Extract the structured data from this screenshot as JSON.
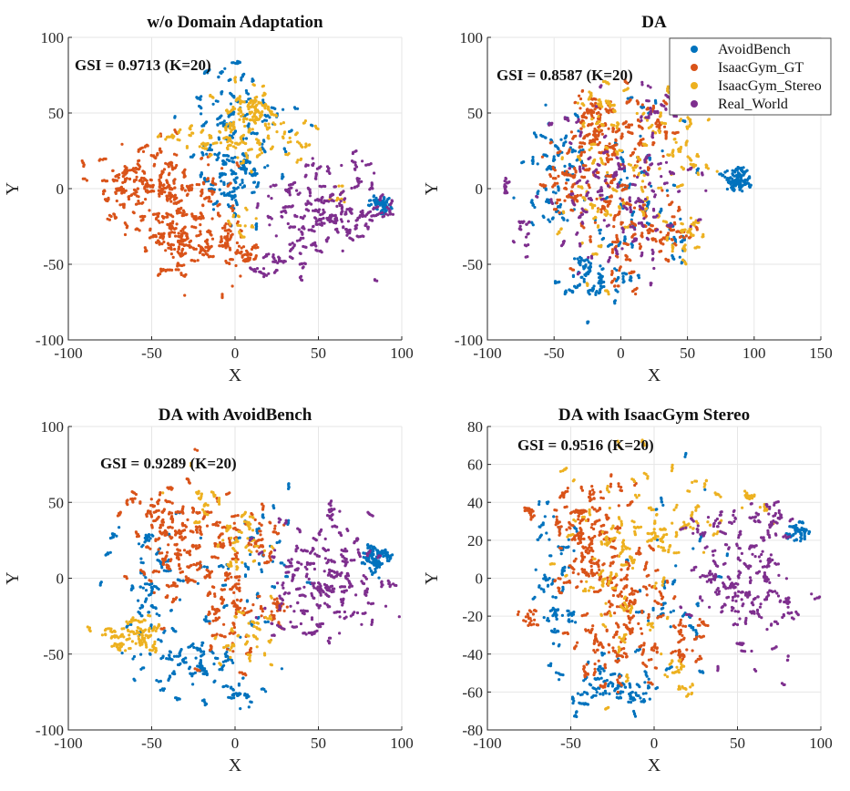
{
  "chart_data": [
    {
      "type": "scatter",
      "title": "w/o Domain Adaptation",
      "xlabel": "X",
      "ylabel": "Y",
      "xlim": [
        -100,
        100
      ],
      "ylim": [
        -100,
        100
      ],
      "xticks": [
        -100,
        -50,
        0,
        50,
        100
      ],
      "yticks": [
        -100,
        -50,
        0,
        50,
        100
      ],
      "xtick_labels": [
        "-100",
        "-50",
        "0",
        "50",
        "100"
      ],
      "ytick_labels": [
        "-100",
        "-50",
        "0",
        "50",
        "100"
      ],
      "grid": true,
      "annotation": "GSI = 0.9713 (K=20)",
      "gsi": 0.9713,
      "k": 20,
      "legend": null,
      "series": [
        {
          "name": "AvoidBench",
          "clusters": [
            [
              -5,
              55,
              12,
              12,
              120
            ],
            [
              -5,
              20,
              12,
              12,
              140
            ],
            [
              -5,
              -5,
              8,
              10,
              60
            ],
            [
              10,
              5,
              6,
              6,
              50
            ],
            [
              88,
              -10,
              3,
              3,
              70
            ],
            [
              20,
              40,
              10,
              8,
              30
            ]
          ]
        },
        {
          "name": "IsaacGym_GT",
          "clusters": [
            [
              -55,
              5,
              14,
              12,
              300
            ],
            [
              -35,
              -30,
              15,
              14,
              320
            ],
            [
              -20,
              -5,
              10,
              12,
              100
            ],
            [
              5,
              -45,
              5,
              5,
              60
            ],
            [
              -5,
              -30,
              5,
              6,
              40
            ]
          ]
        },
        {
          "name": "IsaacGym_Stereo",
          "clusters": [
            [
              8,
              55,
              8,
              8,
              140
            ],
            [
              15,
              35,
              15,
              10,
              150
            ],
            [
              -20,
              35,
              10,
              8,
              40
            ],
            [
              5,
              -25,
              5,
              6,
              25
            ],
            [
              62,
              -5,
              3,
              3,
              15
            ]
          ]
        },
        {
          "name": "Real_World",
          "clusters": [
            [
              50,
              -15,
              17,
              18,
              380
            ],
            [
              20,
              -50,
              8,
              5,
              40
            ],
            [
              75,
              10,
              5,
              5,
              25
            ],
            [
              90,
              -15,
              4,
              4,
              25
            ]
          ]
        }
      ]
    },
    {
      "type": "scatter",
      "title": "DA",
      "xlabel": "X",
      "ylabel": "Y",
      "xlim": [
        -100,
        150
      ],
      "ylim": [
        -100,
        100
      ],
      "xticks": [
        -100,
        -50,
        0,
        50,
        100,
        150
      ],
      "yticks": [
        -100,
        -50,
        0,
        50,
        100
      ],
      "xtick_labels": [
        "-100",
        "-50",
        "0",
        "50",
        "100",
        "150"
      ],
      "ytick_labels": [
        "-100",
        "-50",
        "0",
        "50",
        "100"
      ],
      "grid": true,
      "annotation": "GSI = 0.8587 (K=20)",
      "gsi": 0.8587,
      "k": 20,
      "legend": {
        "position": "top-right",
        "entries": [
          "AvoidBench",
          "IsaacGym_GT",
          "IsaacGym_Stereo",
          "Real_World"
        ]
      },
      "series": [
        {
          "name": "AvoidBench",
          "clusters": [
            [
              -45,
              10,
              12,
              25,
              160
            ],
            [
              -20,
              -60,
              15,
              10,
              150
            ],
            [
              10,
              0,
              25,
              25,
              120
            ],
            [
              87,
              7,
              4,
              4,
              140
            ],
            [
              45,
              -40,
              6,
              8,
              25
            ]
          ]
        },
        {
          "name": "IsaacGym_GT",
          "clusters": [
            [
              -20,
              40,
              10,
              12,
              170
            ],
            [
              -5,
              0,
              15,
              30,
              250
            ],
            [
              -40,
              0,
              8,
              12,
              100
            ],
            [
              35,
              -25,
              10,
              10,
              90
            ],
            [
              20,
              40,
              15,
              12,
              100
            ]
          ]
        },
        {
          "name": "IsaacGym_Stereo",
          "clusters": [
            [
              0,
              10,
              25,
              30,
              220
            ],
            [
              50,
              20,
              12,
              15,
              70
            ],
            [
              45,
              -30,
              10,
              10,
              60
            ],
            [
              -10,
              55,
              12,
              6,
              40
            ]
          ]
        },
        {
          "name": "Real_World",
          "clusters": [
            [
              5,
              0,
              30,
              28,
              300
            ],
            [
              30,
              55,
              8,
              6,
              40
            ],
            [
              -88,
              2,
              2,
              3,
              20
            ],
            [
              -70,
              -30,
              5,
              10,
              25
            ]
          ]
        }
      ]
    },
    {
      "type": "scatter",
      "title": "DA with AvoidBench",
      "xlabel": "X",
      "ylabel": "Y",
      "xlim": [
        -100,
        100
      ],
      "ylim": [
        -100,
        100
      ],
      "xticks": [
        -100,
        -50,
        0,
        50,
        100
      ],
      "yticks": [
        -100,
        -50,
        0,
        50,
        100
      ],
      "xtick_labels": [
        "-100",
        "-50",
        "0",
        "50",
        "100"
      ],
      "ytick_labels": [
        "-100",
        "-50",
        "0",
        "50",
        "100"
      ],
      "grid": true,
      "annotation": "GSI = 0.9289 (K=20)",
      "gsi": 0.9289,
      "k": 20,
      "legend": null,
      "series": [
        {
          "name": "AvoidBench",
          "clusters": [
            [
              -55,
              0,
              12,
              25,
              150
            ],
            [
              -25,
              -60,
              18,
              10,
              150
            ],
            [
              5,
              -75,
              4,
              5,
              40
            ],
            [
              0,
              0,
              20,
              25,
              120
            ],
            [
              85,
              13,
              4,
              4,
              140
            ]
          ]
        },
        {
          "name": "IsaacGym_GT",
          "clusters": [
            [
              -35,
              25,
              12,
              20,
              330
            ],
            [
              -5,
              -20,
              8,
              18,
              170
            ],
            [
              10,
              30,
              10,
              10,
              90
            ],
            [
              25,
              -20,
              5,
              6,
              50
            ],
            [
              -60,
              50,
              4,
              3,
              20
            ]
          ]
        },
        {
          "name": "IsaacGym_Stereo",
          "clusters": [
            [
              -60,
              -38,
              10,
              6,
              150
            ],
            [
              5,
              20,
              8,
              8,
              60
            ],
            [
              10,
              -40,
              12,
              10,
              70
            ],
            [
              -20,
              50,
              15,
              10,
              50
            ]
          ]
        },
        {
          "name": "Real_World",
          "clusters": [
            [
              55,
              0,
              18,
              22,
              380
            ],
            [
              35,
              -35,
              8,
              10,
              40
            ],
            [
              58,
              45,
              2,
              3,
              20
            ]
          ]
        }
      ]
    },
    {
      "type": "scatter",
      "title": "DA with IsaacGym Stereo",
      "xlabel": "X",
      "ylabel": "Y",
      "xlim": [
        -100,
        100
      ],
      "ylim": [
        -80,
        80
      ],
      "xticks": [
        -100,
        -50,
        0,
        50,
        100
      ],
      "yticks": [
        -80,
        -60,
        -40,
        -20,
        0,
        20,
        40,
        60,
        80
      ],
      "xtick_labels": [
        "-100",
        "-50",
        "0",
        "50",
        "100"
      ],
      "ytick_labels": [
        "-80",
        "-60",
        "-40",
        "-20",
        "0",
        "20",
        "40",
        "60",
        "80"
      ],
      "grid": true,
      "annotation": "GSI = 0.9516 (K=20)",
      "gsi": 0.9516,
      "k": 20,
      "legend": null,
      "series": [
        {
          "name": "AvoidBench",
          "clusters": [
            [
              -60,
              0,
              8,
              20,
              130
            ],
            [
              -30,
              -55,
              15,
              8,
              130
            ],
            [
              -10,
              -62,
              4,
              4,
              40
            ],
            [
              10,
              0,
              15,
              25,
              90
            ],
            [
              86,
              25,
              3,
              3,
              60
            ]
          ]
        },
        {
          "name": "IsaacGym_GT",
          "clusters": [
            [
              -40,
              20,
              12,
              20,
              300
            ],
            [
              -15,
              -15,
              12,
              18,
              250
            ],
            [
              -35,
              -40,
              8,
              8,
              70
            ],
            [
              15,
              -30,
              10,
              8,
              70
            ],
            [
              -75,
              35,
              3,
              2,
              20
            ],
            [
              -75,
              -20,
              3,
              3,
              20
            ]
          ]
        },
        {
          "name": "IsaacGym_Stereo",
          "clusters": [
            [
              -20,
              10,
              20,
              25,
              250
            ],
            [
              15,
              30,
              12,
              12,
              90
            ],
            [
              15,
              -50,
              6,
              6,
              40
            ],
            [
              60,
              40,
              6,
              4,
              25
            ]
          ]
        },
        {
          "name": "Real_World",
          "clusters": [
            [
              55,
              0,
              15,
              20,
              380
            ],
            [
              70,
              35,
              4,
              4,
              30
            ],
            [
              80,
              -13,
              3,
              3,
              20
            ]
          ]
        }
      ]
    }
  ],
  "colors": {
    "AvoidBench": "#0072BD",
    "IsaacGym_GT": "#D95319",
    "IsaacGym_Stereo": "#EDB120",
    "Real_World": "#7E2F8E"
  }
}
